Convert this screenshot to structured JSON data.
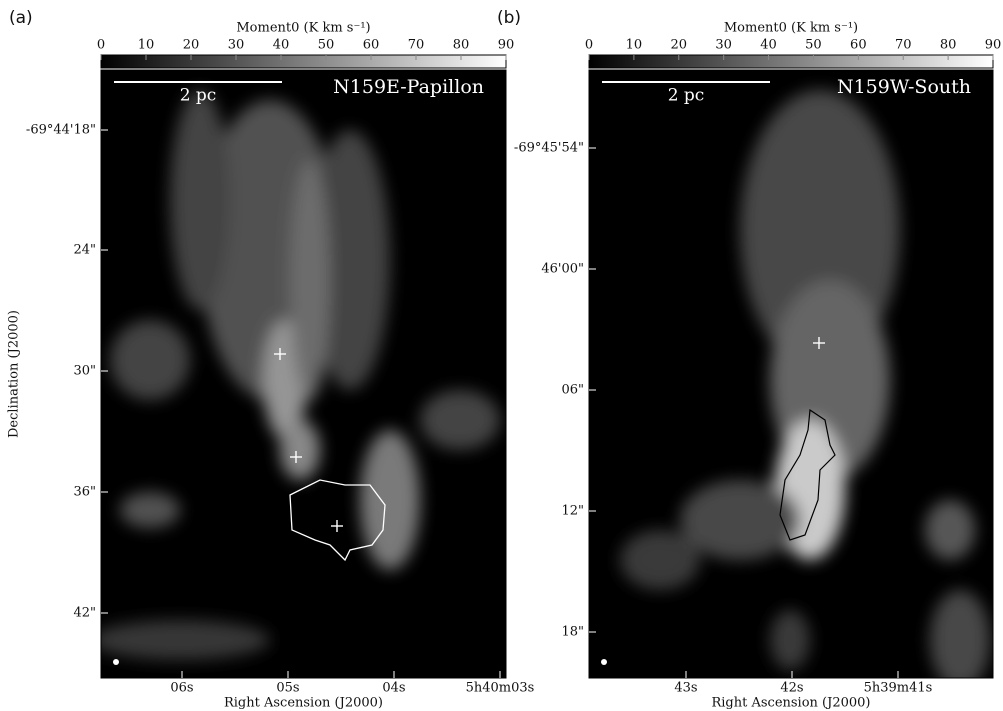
{
  "panels": [
    {
      "label": "(a)",
      "colorbar": {
        "label": "Moment0 (K km s⁻¹)",
        "lim": [
          0,
          90
        ],
        "ticks": [
          0,
          10,
          20,
          30,
          40,
          50,
          60,
          70,
          80,
          90
        ]
      },
      "scale_bar": "2 pc",
      "name": "N159E-Papillon",
      "x_ticks": [
        "06s",
        "05s",
        "04s",
        "5h40m03s"
      ],
      "y_ticks": [
        "-69°44'18\"",
        "24\"",
        "30\"",
        "36\"",
        "42\""
      ],
      "x_label": "Right Ascension (J2000)",
      "y_label": "Declination (J2000)"
    },
    {
      "label": "(b)",
      "colorbar": {
        "label": "Moment0 (K km s⁻¹)",
        "lim": [
          0,
          90
        ],
        "ticks": [
          0,
          10,
          20,
          30,
          40,
          50,
          60,
          70,
          80,
          90
        ]
      },
      "scale_bar": "2 pc",
      "name": "N159W-South",
      "x_ticks": [
        "43s",
        "42s",
        "5h39m41s"
      ],
      "y_ticks": [
        "-69°45'54\"",
        "46'00\"",
        "06\"",
        "12\"",
        "18\""
      ],
      "x_label": "Right Ascension (J2000)"
    }
  ]
}
